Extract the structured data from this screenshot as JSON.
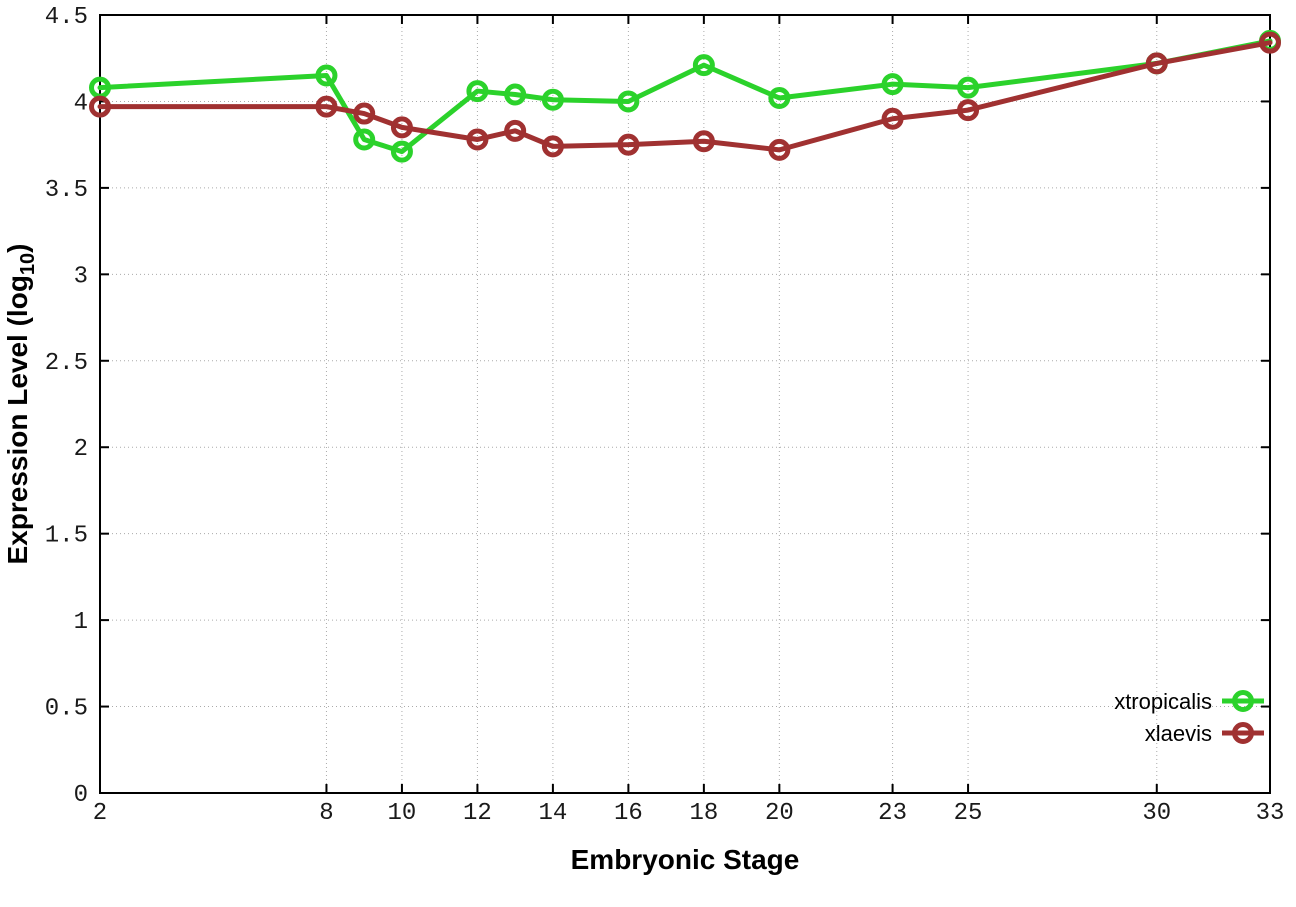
{
  "chart_data": {
    "type": "line",
    "title": "",
    "xlabel": "Embryonic Stage",
    "ylabel_main": "Expression Level (log",
    "ylabel_sub": "10",
    "ylabel_close": ")",
    "x": [
      2,
      8,
      9,
      10,
      12,
      13,
      14,
      16,
      18,
      20,
      23,
      25,
      30,
      33
    ],
    "xlim": [
      2,
      33
    ],
    "ylim": [
      0,
      4.5
    ],
    "xticks": [
      2,
      8,
      10,
      12,
      14,
      16,
      18,
      20,
      23,
      25,
      30,
      33
    ],
    "yticks": [
      0,
      0.5,
      1,
      1.5,
      2,
      2.5,
      3,
      3.5,
      4,
      4.5
    ],
    "grid": true,
    "marker": "open-circle",
    "legend_position": "inside-bottom-right",
    "series": [
      {
        "name": "xtropicalis",
        "color": "#2bd22b",
        "values": [
          4.08,
          4.15,
          3.78,
          3.71,
          4.06,
          4.04,
          4.01,
          4.0,
          4.21,
          4.02,
          4.1,
          4.08,
          4.22,
          4.35
        ]
      },
      {
        "name": "xlaevis",
        "color": "#a03131",
        "values": [
          3.97,
          3.97,
          3.93,
          3.85,
          3.78,
          3.83,
          3.74,
          3.75,
          3.77,
          3.72,
          3.9,
          3.95,
          4.22,
          4.34
        ]
      }
    ],
    "colors": {
      "grid": "#aaaaaa",
      "border": "#000000",
      "text": "#000000"
    }
  }
}
